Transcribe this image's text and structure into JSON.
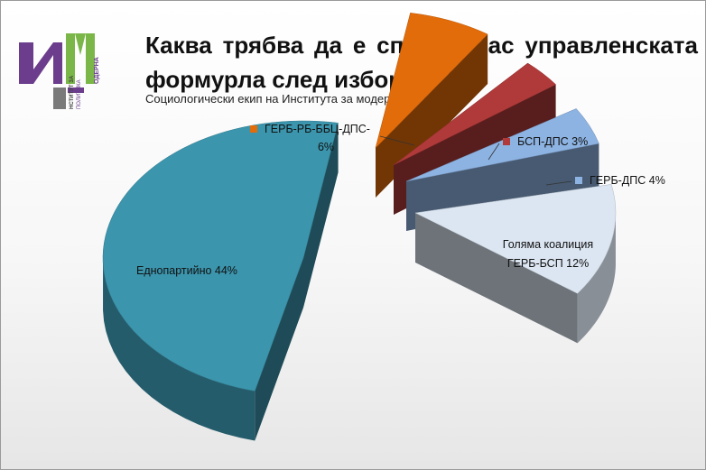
{
  "logo": {
    "mark": "ИМ",
    "text_vertical_1": "ОДЕРНА",
    "text_vertical_2": "НСТИТУТ ЗА",
    "text_vertical_3": "ПОЛИТИКА",
    "colors": {
      "green": "#7ab648",
      "purple": "#6b3d8c"
    }
  },
  "header": {
    "title": "Каква трябва да е според Вас управленската формурла след изборите?",
    "subtitle": "Социологически екип на Института за модерна политика"
  },
  "chart_data": {
    "type": "pie",
    "title": "Каква трябва да е според Вас управленската формурла след изборите?",
    "subtitle": "Социологически екип на Института за модерна политика",
    "series": [
      {
        "label": "Еднопартийно",
        "value": 44,
        "display": "Еднопартийно 44%",
        "color": "#3b95ad",
        "legend": false
      },
      {
        "label": "ГЕРБ-РБ-ББЦ-ДПС-",
        "value": 6,
        "display": "6%",
        "color": "#e36c0a",
        "legend": true
      },
      {
        "label": "БСП-ДПС",
        "value": 3,
        "display": "БСП-ДПС 3%",
        "color": "#b03a3a",
        "legend": true
      },
      {
        "label": "ГЕРБ-ДПС",
        "value": 4,
        "display": "ГЕРБ-ДПС 4%",
        "color": "#8db3e2",
        "legend": true
      },
      {
        "label": "Голяма коалиция ГЕРБ-БСП",
        "value": 12,
        "display_line1": "Голяма коалиция",
        "display_line2": "ГЕРБ-БСП 12%",
        "color": "#dce6f2",
        "legend": false
      }
    ],
    "exploded": true,
    "style": "3d"
  }
}
